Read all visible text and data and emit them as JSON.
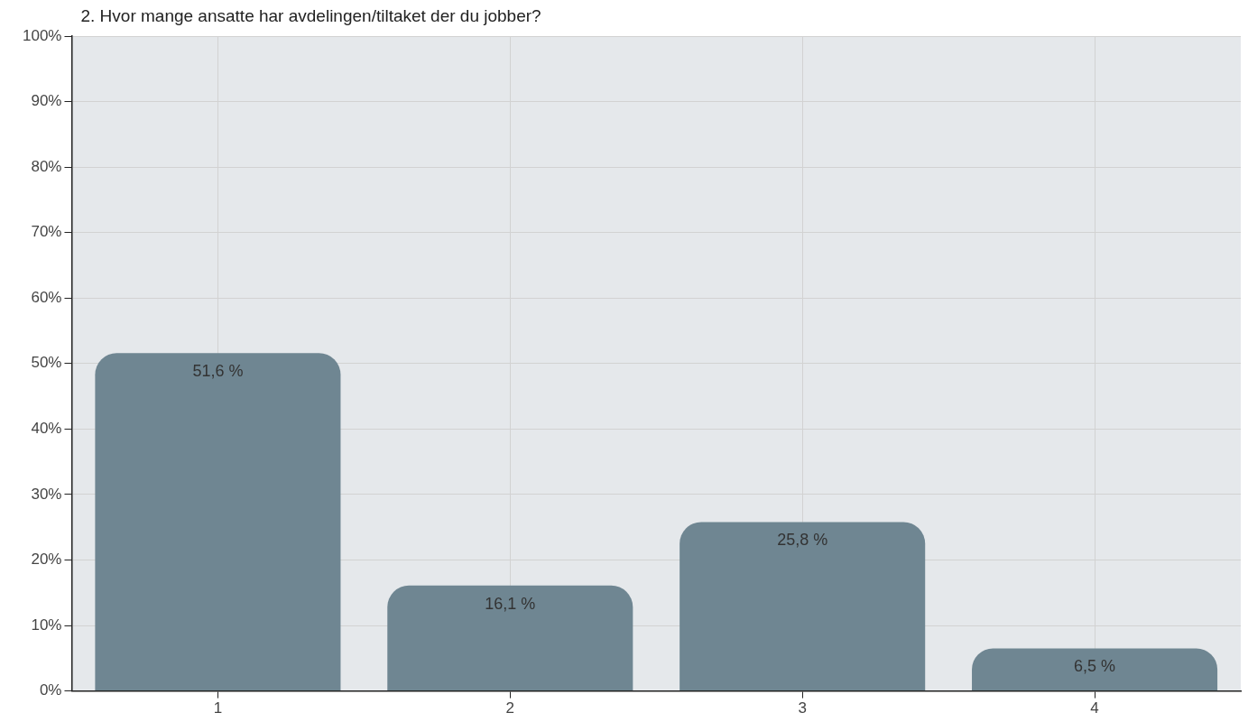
{
  "chart_data": {
    "type": "bar",
    "title": "2. Hvor mange ansatte har avdelingen/tiltaket der du jobber?",
    "categories": [
      "1",
      "2",
      "3",
      "4"
    ],
    "values": [
      51.6,
      16.1,
      25.8,
      6.5
    ],
    "value_labels": [
      "51,6 %",
      "16,1 %",
      "25,8 %",
      "6,5 %"
    ],
    "color": "#6f8692",
    "ylim": [
      0,
      100
    ],
    "yticks": [
      {
        "value": 0,
        "label": "0%"
      },
      {
        "value": 10,
        "label": "10%"
      },
      {
        "value": 20,
        "label": "20%"
      },
      {
        "value": 30,
        "label": "30%"
      },
      {
        "value": 40,
        "label": "40%"
      },
      {
        "value": 50,
        "label": "50%"
      },
      {
        "value": 60,
        "label": "60%"
      },
      {
        "value": 70,
        "label": "70%"
      },
      {
        "value": 80,
        "label": "80%"
      },
      {
        "value": 90,
        "label": "90%"
      },
      {
        "value": 100,
        "label": "100%"
      }
    ],
    "grid": true
  }
}
